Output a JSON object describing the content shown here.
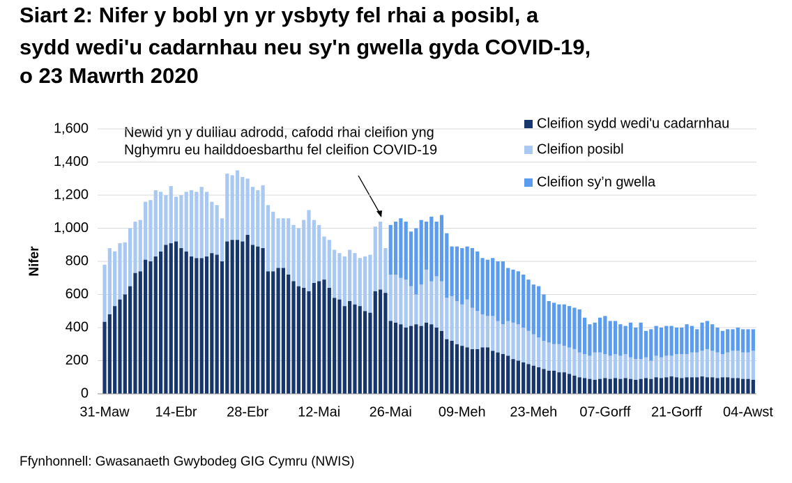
{
  "chart_data": {
    "type": "stacked-bar",
    "title": [
      "Siart 2: Nifer y bobl yn yr ysbyty fel rhai a posibl, a",
      "sydd wedi'u cadarnhau neu sy'n gwella gyda COVID-19,",
      "o 23 Mawrth 2020"
    ],
    "y_label": "Nifer",
    "annotation": [
      "Newid yn y dulliau adrodd, cafodd rhai cleifion yng",
      "Nghymru eu hailddoesbarthu fel cleifion COVID-19"
    ],
    "source": "Ffynhonnell: Gwasanaeth Gwybodeg GIG Cymru (NWIS)",
    "ylim": [
      0,
      1600
    ],
    "yticks": [
      0,
      200,
      400,
      600,
      800,
      {
        "value": 1000,
        "label": "1,000"
      },
      {
        "value": 1200,
        "label": "1,200"
      },
      {
        "value": 1400,
        "label": "1,400"
      },
      {
        "value": 1600,
        "label": "1,600"
      }
    ],
    "grid": true,
    "legend": "top-right",
    "categories": [
      "31-Maw",
      null,
      null,
      null,
      null,
      null,
      null,
      null,
      null,
      null,
      null,
      null,
      null,
      null,
      "14-Ebr",
      null,
      null,
      null,
      null,
      null,
      null,
      null,
      null,
      null,
      null,
      null,
      null,
      null,
      "28-Ebr",
      null,
      null,
      null,
      null,
      null,
      null,
      null,
      null,
      null,
      null,
      null,
      null,
      null,
      "12-Mai",
      null,
      null,
      null,
      null,
      null,
      null,
      null,
      null,
      null,
      null,
      null,
      null,
      null,
      "26-Mai",
      null,
      null,
      null,
      null,
      null,
      null,
      null,
      null,
      null,
      null,
      null,
      null,
      null,
      "09-Meh",
      null,
      null,
      null,
      null,
      null,
      null,
      null,
      null,
      null,
      null,
      null,
      null,
      null,
      "23-Meh",
      null,
      null,
      null,
      null,
      null,
      null,
      null,
      null,
      null,
      null,
      null,
      null,
      null,
      "07-Gorff",
      null,
      null,
      null,
      null,
      null,
      null,
      null,
      null,
      null,
      null,
      null,
      null,
      null,
      "21-Gorff",
      null,
      null,
      null,
      null,
      null,
      null,
      null,
      null,
      null,
      null,
      null,
      null,
      null,
      "04-Awst",
      null
    ],
    "series": [
      {
        "name": "Cleifion sydd wedi'u cadarnhau",
        "color": "#17366b",
        "values": [
          435,
          480,
          530,
          570,
          600,
          650,
          730,
          740,
          810,
          800,
          830,
          860,
          900,
          910,
          920,
          880,
          860,
          830,
          820,
          820,
          830,
          850,
          840,
          800,
          920,
          930,
          930,
          920,
          960,
          900,
          890,
          880,
          740,
          740,
          760,
          760,
          720,
          680,
          650,
          640,
          620,
          670,
          680,
          690,
          640,
          580,
          570,
          530,
          560,
          540,
          530,
          500,
          490,
          620,
          630,
          610,
          440,
          430,
          420,
          400,
          410,
          420,
          410,
          430,
          420,
          400,
          380,
          330,
          320,
          300,
          290,
          280,
          270,
          270,
          280,
          280,
          260,
          250,
          240,
          230,
          210,
          200,
          190,
          180,
          170,
          160,
          150,
          140,
          140,
          130,
          130,
          120,
          110,
          100,
          95,
          90,
          85,
          90,
          95,
          90,
          95,
          90,
          95,
          90,
          85,
          90,
          95,
          90,
          100,
          95,
          100,
          105,
          100,
          95,
          100,
          100,
          100,
          105,
          100,
          100,
          95,
          100,
          100,
          95,
          95,
          90,
          90,
          85
        ]
      },
      {
        "name": "Cleifion posibl",
        "color": "#a9c9f3",
        "values": [
          345,
          400,
          330,
          340,
          315,
          350,
          310,
          310,
          350,
          370,
          400,
          360,
          300,
          345,
          270,
          320,
          360,
          400,
          400,
          430,
          390,
          310,
          300,
          260,
          410,
          390,
          420,
          390,
          340,
          350,
          340,
          380,
          400,
          360,
          300,
          300,
          340,
          340,
          350,
          410,
          490,
          380,
          340,
          260,
          290,
          290,
          280,
          300,
          310,
          310,
          290,
          330,
          350,
          390,
          410,
          270,
          280,
          290,
          280,
          290,
          240,
          180,
          250,
          320,
          260,
          310,
          300,
          250,
          270,
          260,
          250,
          290,
          250,
          230,
          200,
          190,
          210,
          190,
          180,
          210,
          220,
          220,
          210,
          200,
          190,
          180,
          170,
          170,
          160,
          170,
          160,
          160,
          160,
          150,
          145,
          140,
          165,
          160,
          145,
          140,
          145,
          140,
          145,
          130,
          125,
          120,
          125,
          110,
          130,
          125,
          130,
          125,
          140,
          145,
          140,
          150,
          150,
          155,
          170,
          160,
          155,
          140,
          150,
          165,
          165,
          160,
          160,
          175
        ]
      },
      {
        "name": "Cleifion sy’n gwella",
        "color": "#5b9cee",
        "values": [
          null,
          null,
          null,
          null,
          null,
          null,
          null,
          null,
          null,
          null,
          null,
          null,
          null,
          null,
          null,
          null,
          null,
          null,
          null,
          null,
          null,
          null,
          null,
          null,
          null,
          null,
          null,
          null,
          null,
          null,
          null,
          null,
          null,
          null,
          null,
          null,
          null,
          null,
          null,
          null,
          null,
          null,
          null,
          null,
          null,
          null,
          null,
          null,
          null,
          null,
          null,
          null,
          null,
          null,
          null,
          null,
          300,
          320,
          360,
          350,
          330,
          400,
          390,
          290,
          390,
          330,
          400,
          390,
          300,
          330,
          340,
          320,
          360,
          360,
          340,
          340,
          350,
          360,
          380,
          320,
          320,
          320,
          320,
          310,
          300,
          310,
          280,
          250,
          250,
          240,
          250,
          250,
          250,
          260,
          220,
          190,
          180,
          210,
          230,
          210,
          200,
          190,
          170,
          210,
          190,
          220,
          160,
          190,
          180,
          180,
          180,
          180,
          160,
          160,
          180,
          160,
          140,
          170,
          170,
          160,
          150,
          140,
          140,
          130,
          140,
          140,
          140,
          130
        ]
      }
    ]
  }
}
